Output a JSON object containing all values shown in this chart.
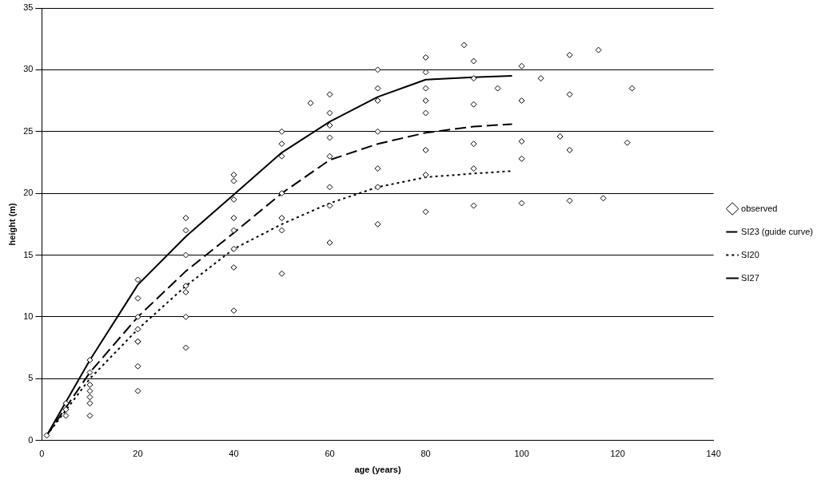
{
  "chart_data": {
    "type": "scatter",
    "xlabel": "age (years)",
    "ylabel": "height (m)",
    "xlim": [
      0,
      140
    ],
    "xticks": [
      0,
      20,
      40,
      60,
      80,
      100,
      120,
      140
    ],
    "ylim": [
      0,
      35
    ],
    "yticks": [
      0,
      5,
      10,
      15,
      20,
      25,
      30,
      35
    ],
    "grid": "y",
    "legend": "right",
    "series": [
      {
        "name": "observed",
        "type": "scatter",
        "marker": "diamond",
        "color": "#000000",
        "x": [
          1,
          5,
          10,
          20,
          30,
          40,
          50,
          56,
          60,
          70,
          80,
          88,
          5,
          10,
          20,
          30,
          40,
          50,
          60,
          70,
          80,
          90,
          100,
          110,
          116,
          10,
          20,
          30,
          40,
          50,
          60,
          70,
          80,
          90,
          100,
          110,
          123,
          10,
          20,
          30,
          40,
          50,
          60,
          70,
          80,
          90,
          100,
          108,
          10,
          20,
          30,
          40,
          50,
          60,
          70,
          80,
          90,
          100,
          110,
          122,
          10,
          20,
          30,
          40,
          50,
          60,
          70,
          80,
          90,
          100,
          110,
          117,
          5,
          10,
          20,
          30,
          40,
          50,
          60,
          70,
          80,
          90,
          20,
          40,
          60,
          80,
          95,
          104
        ],
        "values": [
          0.4,
          2.5,
          5.5,
          11.5,
          17,
          21.5,
          25,
          27.3,
          28,
          30,
          31,
          32,
          2,
          4.5,
          10,
          15,
          19.5,
          23,
          25.5,
          27.5,
          28.5,
          29.3,
          30.3,
          31.2,
          31.6,
          4,
          8,
          12.5,
          17,
          20,
          23,
          25,
          26.5,
          27.2,
          27.5,
          28,
          28.5,
          3.5,
          8,
          12,
          15.5,
          18,
          20.5,
          22,
          23.5,
          24,
          24.2,
          24.6,
          3,
          6,
          10,
          14,
          17,
          19,
          20.5,
          21.5,
          22,
          22.8,
          23.5,
          24.1,
          2,
          4,
          7.5,
          10.5,
          13.5,
          16,
          17.5,
          18.5,
          19,
          19.2,
          19.4,
          19.6,
          3,
          6.5,
          13,
          18,
          21,
          24,
          26.5,
          28.5,
          29.8,
          30.7,
          9,
          18,
          24.5,
          27.5,
          28.5,
          29.3
        ]
      },
      {
        "name": "SI23 (guide curve)",
        "type": "line",
        "marker": "none",
        "line_style": "dashed",
        "color": "#000000",
        "x": [
          1,
          10,
          20,
          30,
          40,
          50,
          60,
          70,
          80,
          90,
          98
        ],
        "values": [
          0.4,
          5.5,
          10,
          13.7,
          16.8,
          20,
          22.7,
          24,
          24.9,
          25.4,
          25.6
        ]
      },
      {
        "name": "SI20",
        "type": "line",
        "marker": "none",
        "line_style": "dotted",
        "color": "#000000",
        "x": [
          1,
          10,
          20,
          30,
          40,
          50,
          60,
          70,
          80,
          90,
          98
        ],
        "values": [
          0.4,
          5,
          9,
          12.5,
          15.5,
          17.5,
          19.2,
          20.5,
          21.3,
          21.6,
          21.8
        ]
      },
      {
        "name": "SI27",
        "type": "line",
        "marker": "none",
        "line_style": "solid",
        "color": "#000000",
        "x": [
          1,
          10,
          20,
          30,
          40,
          50,
          60,
          70,
          80,
          90,
          98
        ],
        "values": [
          0.4,
          6.5,
          12.6,
          16.5,
          19.9,
          23.3,
          25.8,
          27.8,
          29.2,
          29.4,
          29.5
        ]
      }
    ]
  }
}
